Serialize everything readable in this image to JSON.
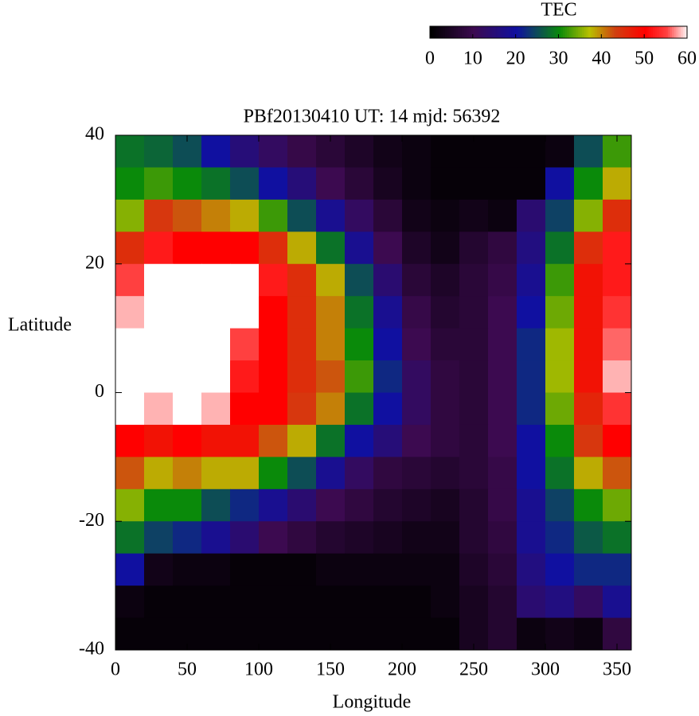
{
  "chart_data": {
    "type": "heatmap",
    "title": "PBf20130410  UT: 14  mjd: 56392",
    "x_label": "Longitude",
    "y_label": "Latitude",
    "x": [
      10,
      30,
      50,
      70,
      90,
      110,
      130,
      150,
      170,
      190,
      210,
      230,
      250,
      270,
      290,
      310,
      330,
      350
    ],
    "y": [
      37.5,
      32.5,
      27.5,
      22.5,
      17.5,
      12.5,
      7.5,
      2.5,
      -2.5,
      -7.5,
      -12.5,
      -17.5,
      -22.5,
      -27.5,
      -32.5,
      -37.5
    ],
    "cell_width": 20,
    "cell_height": 5,
    "z": [
      [
        28,
        27,
        25,
        20,
        15,
        12,
        9,
        7,
        5,
        3,
        2,
        1,
        1,
        1,
        1,
        2,
        25,
        32
      ],
      [
        30,
        32,
        30,
        28,
        25,
        20,
        15,
        10,
        7,
        4,
        2,
        1,
        1,
        1,
        1,
        20,
        30,
        38
      ],
      [
        35,
        44,
        42,
        40,
        38,
        32,
        25,
        18,
        12,
        7,
        3,
        2,
        3,
        2,
        14,
        24,
        35,
        45
      ],
      [
        45,
        52,
        50,
        50,
        50,
        45,
        38,
        28,
        18,
        10,
        5,
        3,
        6,
        8,
        16,
        28,
        45,
        52
      ],
      [
        55,
        60,
        60,
        60,
        60,
        52,
        45,
        38,
        25,
        14,
        7,
        5,
        7,
        9,
        18,
        32,
        48,
        52
      ],
      [
        58,
        60,
        60,
        60,
        60,
        50,
        45,
        40,
        28,
        18,
        9,
        6,
        7,
        10,
        20,
        34,
        48,
        54
      ],
      [
        60,
        60,
        60,
        60,
        55,
        50,
        45,
        40,
        30,
        20,
        10,
        7,
        7,
        10,
        22,
        36,
        48,
        56
      ],
      [
        60,
        60,
        60,
        60,
        52,
        50,
        45,
        42,
        32,
        22,
        12,
        8,
        7,
        10,
        22,
        36,
        48,
        58
      ],
      [
        60,
        58,
        60,
        58,
        50,
        50,
        44,
        40,
        28,
        20,
        12,
        8,
        7,
        10,
        22,
        34,
        46,
        54
      ],
      [
        50,
        48,
        50,
        48,
        48,
        42,
        38,
        28,
        20,
        15,
        10,
        8,
        7,
        10,
        20,
        30,
        44,
        50
      ],
      [
        42,
        38,
        40,
        38,
        38,
        30,
        25,
        18,
        12,
        8,
        7,
        6,
        7,
        9,
        20,
        28,
        38,
        42
      ],
      [
        35,
        30,
        30,
        25,
        22,
        18,
        14,
        10,
        8,
        6,
        5,
        4,
        6,
        9,
        18,
        24,
        30,
        34
      ],
      [
        28,
        24,
        22,
        18,
        14,
        10,
        8,
        6,
        5,
        4,
        3,
        3,
        6,
        8,
        18,
        22,
        26,
        28
      ],
      [
        20,
        3,
        2,
        2,
        1,
        1,
        1,
        2,
        2,
        2,
        2,
        2,
        5,
        7,
        16,
        20,
        22,
        22
      ],
      [
        2,
        1,
        1,
        1,
        1,
        1,
        1,
        1,
        1,
        1,
        1,
        2,
        4,
        6,
        14,
        16,
        12,
        18
      ],
      [
        1,
        1,
        1,
        1,
        1,
        1,
        1,
        1,
        1,
        1,
        1,
        1,
        4,
        6,
        2,
        3,
        2,
        8
      ]
    ],
    "xlim": [
      0,
      360
    ],
    "ylim": [
      -40,
      40
    ],
    "xticks": [
      0,
      50,
      100,
      150,
      200,
      250,
      300,
      350
    ],
    "yticks": [
      -40,
      -20,
      0,
      20,
      40
    ],
    "colorbar": {
      "label": "TEC",
      "lim": [
        0,
        60
      ],
      "ticks": [
        0,
        10,
        20,
        30,
        40,
        50,
        60
      ]
    },
    "colormap": [
      [
        0,
        "#000000"
      ],
      [
        10,
        "#3c0a50"
      ],
      [
        20,
        "#1010a0"
      ],
      [
        30,
        "#0a8a0a"
      ],
      [
        37,
        "#b8c000"
      ],
      [
        43,
        "#d04010"
      ],
      [
        50,
        "#ff0000"
      ],
      [
        55,
        "#ff4040"
      ],
      [
        60,
        "#ffffff"
      ]
    ]
  }
}
